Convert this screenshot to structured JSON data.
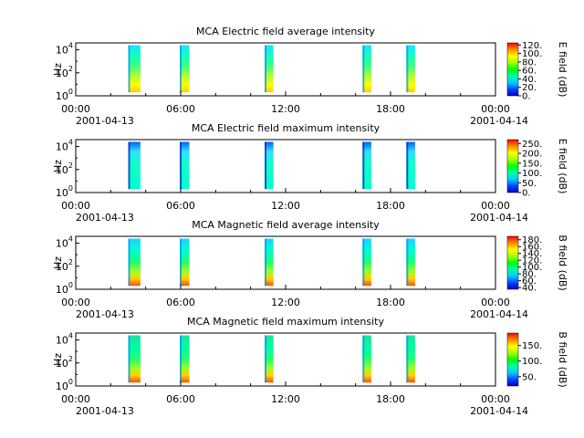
{
  "chart_data": [
    {
      "type": "heatmap",
      "title": "MCA  Electric field average intensity",
      "ylabel": "Hz",
      "y_ticks": [
        {
          "base": "10",
          "exp": "0"
        },
        {
          "base": "10",
          "exp": "2"
        },
        {
          "base": "10",
          "exp": "4"
        }
      ],
      "ylim_log10": [
        0,
        4.6
      ],
      "x_ticks": [
        "00:00",
        "06:00",
        "12:00",
        "18:00",
        "00:00"
      ],
      "x_dates": [
        "2001-04-13",
        "2001-04-14"
      ],
      "xlim_hours": [
        0,
        24
      ],
      "colorbar": {
        "label": "E field (dB)",
        "ticks": [
          "0.",
          "20.",
          "40.",
          "60.",
          "80.",
          "100.",
          "120."
        ],
        "range": [
          0,
          125
        ]
      },
      "data_intervals_hours": [
        [
          3.0,
          3.7
        ],
        [
          5.95,
          6.5
        ],
        [
          10.8,
          11.3
        ],
        [
          16.4,
          16.9
        ],
        [
          18.9,
          19.4
        ]
      ],
      "colorscale": "rainbow"
    },
    {
      "type": "heatmap",
      "title": "MCA  Electric field maximum intensity",
      "ylabel": "Hz",
      "y_ticks": [
        {
          "base": "10",
          "exp": "0"
        },
        {
          "base": "10",
          "exp": "2"
        },
        {
          "base": "10",
          "exp": "4"
        }
      ],
      "ylim_log10": [
        0,
        4.6
      ],
      "x_ticks": [
        "00:00",
        "06:00",
        "12:00",
        "18:00",
        "00:00"
      ],
      "x_dates": [
        "2001-04-13",
        "2001-04-14"
      ],
      "xlim_hours": [
        0,
        24
      ],
      "colorbar": {
        "label": "E field (dB)",
        "ticks": [
          "0.",
          "50.",
          "100.",
          "150.",
          "200.",
          "250."
        ],
        "range": [
          0,
          270
        ]
      },
      "data_intervals_hours": [
        [
          3.0,
          3.7
        ],
        [
          5.95,
          6.5
        ],
        [
          10.8,
          11.3
        ],
        [
          16.4,
          16.9
        ],
        [
          18.9,
          19.4
        ]
      ],
      "colorscale": "rainbow"
    },
    {
      "type": "heatmap",
      "title": "MCA  Magnetic field average intensity",
      "ylabel": "Hz",
      "y_ticks": [
        {
          "base": "10",
          "exp": "0"
        },
        {
          "base": "10",
          "exp": "2"
        },
        {
          "base": "10",
          "exp": "4"
        }
      ],
      "ylim_log10": [
        0,
        4.6
      ],
      "x_ticks": [
        "00:00",
        "06:00",
        "12:00",
        "18:00",
        "00:00"
      ],
      "x_dates": [
        "2001-04-13",
        "2001-04-14"
      ],
      "xlim_hours": [
        0,
        24
      ],
      "colorbar": {
        "label": "B field (dB)",
        "ticks": [
          "40.",
          "60.",
          "80.",
          "100.",
          "120.",
          "140.",
          "160.",
          "180."
        ],
        "range": [
          35,
          190
        ]
      },
      "data_intervals_hours": [
        [
          3.0,
          3.7
        ],
        [
          5.95,
          6.5
        ],
        [
          10.8,
          11.3
        ],
        [
          16.4,
          16.9
        ],
        [
          18.9,
          19.4
        ]
      ],
      "colorscale": "rainbow"
    },
    {
      "type": "heatmap",
      "title": "MCA  Magnetic field maximum intensity",
      "ylabel": "Hz",
      "y_ticks": [
        {
          "base": "10",
          "exp": "0"
        },
        {
          "base": "10",
          "exp": "2"
        },
        {
          "base": "10",
          "exp": "4"
        }
      ],
      "ylim_log10": [
        0,
        4.6
      ],
      "x_ticks": [
        "00:00",
        "06:00",
        "12:00",
        "18:00",
        "00:00"
      ],
      "x_dates": [
        "2001-04-13",
        "2001-04-14"
      ],
      "xlim_hours": [
        0,
        24
      ],
      "colorbar": {
        "label": "B field (dB)",
        "ticks": [
          "50.",
          "100.",
          "150."
        ],
        "range": [
          20,
          190
        ]
      },
      "data_intervals_hours": [
        [
          3.0,
          3.7
        ],
        [
          5.95,
          6.5
        ],
        [
          10.8,
          11.3
        ],
        [
          16.4,
          16.9
        ],
        [
          18.9,
          19.4
        ]
      ],
      "colorscale": "rainbow"
    }
  ]
}
